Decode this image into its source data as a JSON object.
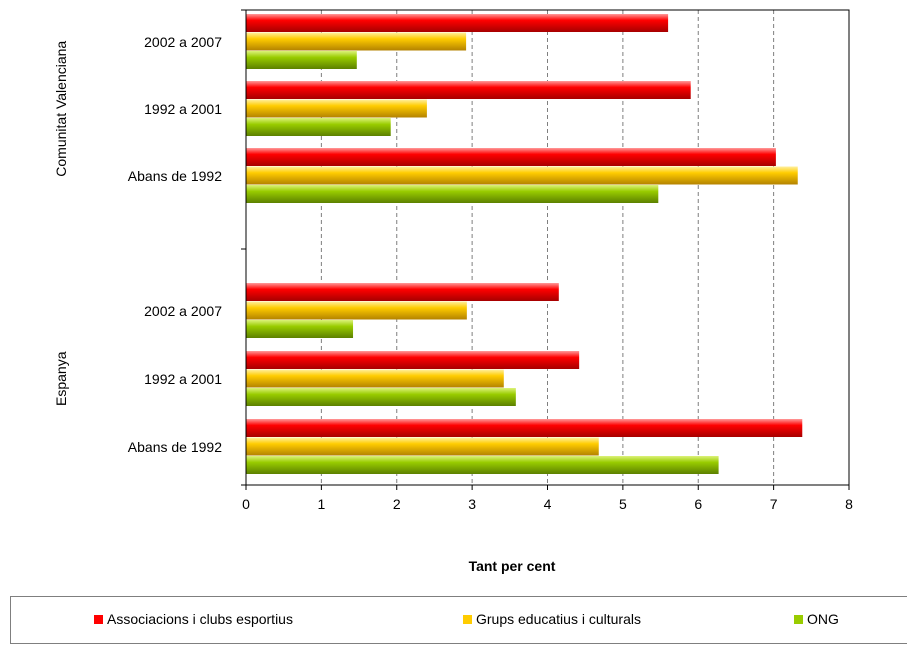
{
  "chart_data": {
    "type": "bar",
    "orientation": "horizontal",
    "xlabel": "Tant per cent",
    "xlim": [
      0,
      8
    ],
    "xticks": [
      0,
      1,
      2,
      3,
      4,
      5,
      6,
      7,
      8
    ],
    "grid": "vertical dashed",
    "legend_position": "bottom",
    "groups": [
      {
        "name": "Comunitat Valenciana",
        "categories": [
          "2002 a 2007",
          "1992 a 2001",
          "Abans de 1992"
        ]
      },
      {
        "name": "Espanya",
        "categories": [
          "2002 a 2007",
          "1992 a 2001",
          "Abans de 1992"
        ]
      }
    ],
    "series": [
      {
        "name": "Associacions i clubs esportius",
        "color": "#ff0000",
        "values": [
          [
            5.6,
            5.9,
            7.03
          ],
          [
            4.15,
            4.42,
            7.38
          ]
        ]
      },
      {
        "name": "Grups educatius i culturals",
        "color": "#ffcc00",
        "values": [
          [
            2.92,
            2.4,
            7.32
          ],
          [
            2.93,
            3.42,
            4.68
          ]
        ]
      },
      {
        "name": "ONG",
        "color": "#99cc00",
        "values": [
          [
            1.47,
            1.92,
            5.47
          ],
          [
            1.42,
            3.58,
            6.27
          ]
        ]
      }
    ]
  }
}
